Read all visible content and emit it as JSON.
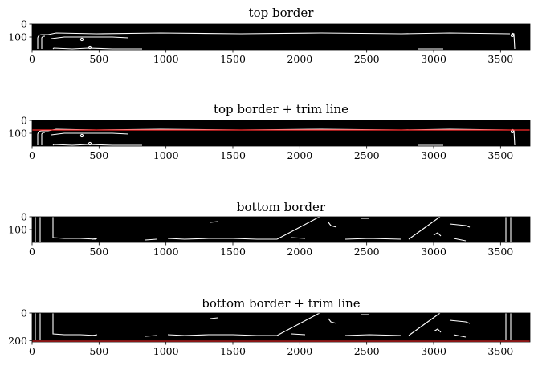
{
  "chart_data": [
    {
      "type": "heatmap",
      "title": "top border",
      "xlim": [
        0,
        3720
      ],
      "ylim": [
        200,
        0
      ],
      "xticks": [
        "0",
        "500",
        "1000",
        "1500",
        "2000",
        "2500",
        "3000",
        "3500"
      ],
      "yticks": [
        "0",
        "100"
      ],
      "trim_line": null
    },
    {
      "type": "heatmap",
      "title": "top border + trim line",
      "xlim": [
        0,
        3720
      ],
      "ylim": [
        200,
        0
      ],
      "xticks": [
        "0",
        "500",
        "1000",
        "1500",
        "2000",
        "2500",
        "3000",
        "3500"
      ],
      "yticks": [
        "0",
        "100"
      ],
      "trim_line": 75,
      "trim_color": "#ff2a2a"
    },
    {
      "type": "heatmap",
      "title": "bottom border",
      "xlim": [
        0,
        3720
      ],
      "ylim": [
        200,
        0
      ],
      "xticks": [
        "0",
        "500",
        "1000",
        "1500",
        "2000",
        "2500",
        "3000",
        "3500"
      ],
      "yticks": [
        "0",
        "100"
      ],
      "trim_line": null
    },
    {
      "type": "heatmap",
      "title": "bottom border + trim line",
      "xlim": [
        0,
        3720
      ],
      "ylim": [
        210,
        0
      ],
      "xticks": [
        "0",
        "500",
        "1000",
        "1500",
        "2000",
        "2500",
        "3000",
        "3500"
      ],
      "yticks": [
        "0",
        "200"
      ],
      "trim_line": 205,
      "trim_color": "#ff2a2a"
    }
  ]
}
